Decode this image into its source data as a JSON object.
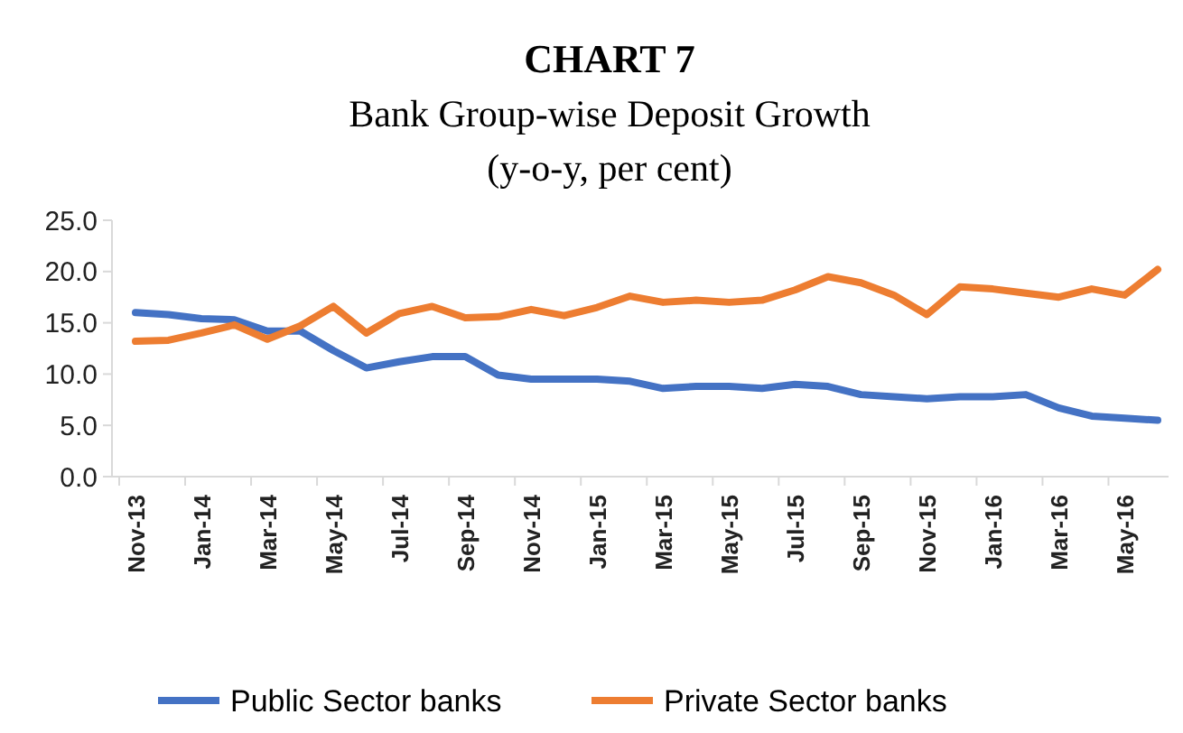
{
  "chart_data": {
    "type": "line",
    "title": "CHART 7",
    "subtitle": "Bank Group-wise Deposit Growth\n(y-o-y, per cent)",
    "categories": [
      "Nov-13",
      null,
      "Jan-14",
      null,
      "Mar-14",
      null,
      "May-14",
      null,
      "Jul-14",
      null,
      "Sep-14",
      null,
      "Nov-14",
      null,
      "Jan-15",
      null,
      "Mar-15",
      null,
      "May-15",
      null,
      "Jul-15",
      null,
      "Sep-15",
      null,
      "Nov-15",
      null,
      "Jan-16",
      null,
      "Mar-16",
      null,
      "May-16",
      null
    ],
    "series": [
      {
        "name": "Public Sector banks",
        "color": "#4472c4",
        "values": [
          16.0,
          15.8,
          15.4,
          15.3,
          14.2,
          14.2,
          12.3,
          10.6,
          11.2,
          11.7,
          11.7,
          9.9,
          9.5,
          9.5,
          9.5,
          9.3,
          8.6,
          8.8,
          8.8,
          8.6,
          9.0,
          8.8,
          8.0,
          7.8,
          7.6,
          7.8,
          7.8,
          8.0,
          6.7,
          5.9,
          5.7,
          5.5
        ]
      },
      {
        "name": "Private Sector banks",
        "color": "#ed7d31",
        "values": [
          13.2,
          13.3,
          14.0,
          14.8,
          13.4,
          14.7,
          16.6,
          14.0,
          15.9,
          16.6,
          15.5,
          15.6,
          16.3,
          15.7,
          16.5,
          17.6,
          17.0,
          17.2,
          17.0,
          17.2,
          18.2,
          19.5,
          18.9,
          17.7,
          15.8,
          18.5,
          18.3,
          17.9,
          17.5,
          18.3,
          17.7,
          20.2
        ]
      }
    ],
    "ylim": [
      0,
      25
    ],
    "yticks": [
      {
        "value": 0,
        "label": "0.0"
      },
      {
        "value": 5,
        "label": "5.0"
      },
      {
        "value": 10,
        "label": "10.0"
      },
      {
        "value": 15,
        "label": "15.0"
      },
      {
        "value": 20,
        "label": "20.0"
      },
      {
        "value": 25,
        "label": "25.0"
      }
    ],
    "legend": "bottom",
    "marker": "none",
    "line_style": "solid"
  }
}
